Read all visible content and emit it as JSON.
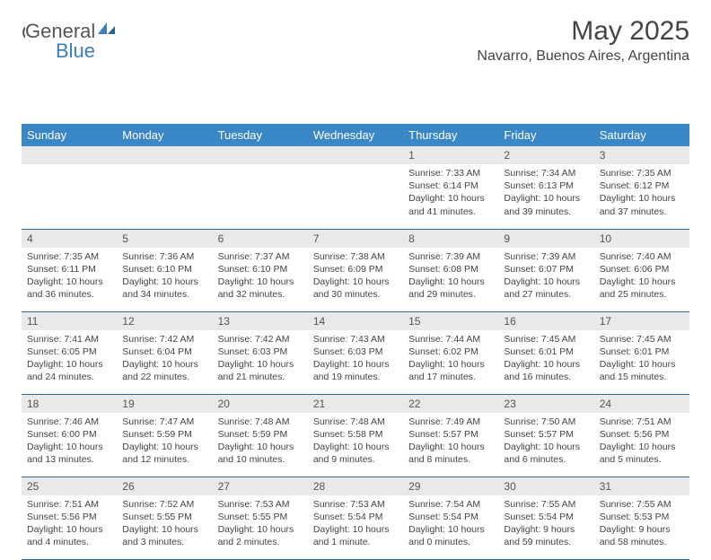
{
  "logo": {
    "general": "General",
    "blue": "Blue"
  },
  "title": "May 2025",
  "location": "Navarro, Buenos Aires, Argentina",
  "colors": {
    "header_bg": "#3a87c7",
    "header_fg": "#ffffff",
    "daynum_bg": "#e9e9e9",
    "row_border": "#356a9c",
    "logo_blue": "#3a7ebf"
  },
  "weekdays": [
    "Sunday",
    "Monday",
    "Tuesday",
    "Wednesday",
    "Thursday",
    "Friday",
    "Saturday"
  ],
  "grid": {
    "first_weekday_index": 4,
    "days_in_month": 31
  },
  "days": {
    "1": {
      "sunrise": "7:33 AM",
      "sunset": "6:14 PM",
      "daylight": "10 hours and 41 minutes."
    },
    "2": {
      "sunrise": "7:34 AM",
      "sunset": "6:13 PM",
      "daylight": "10 hours and 39 minutes."
    },
    "3": {
      "sunrise": "7:35 AM",
      "sunset": "6:12 PM",
      "daylight": "10 hours and 37 minutes."
    },
    "4": {
      "sunrise": "7:35 AM",
      "sunset": "6:11 PM",
      "daylight": "10 hours and 36 minutes."
    },
    "5": {
      "sunrise": "7:36 AM",
      "sunset": "6:10 PM",
      "daylight": "10 hours and 34 minutes."
    },
    "6": {
      "sunrise": "7:37 AM",
      "sunset": "6:10 PM",
      "daylight": "10 hours and 32 minutes."
    },
    "7": {
      "sunrise": "7:38 AM",
      "sunset": "6:09 PM",
      "daylight": "10 hours and 30 minutes."
    },
    "8": {
      "sunrise": "7:39 AM",
      "sunset": "6:08 PM",
      "daylight": "10 hours and 29 minutes."
    },
    "9": {
      "sunrise": "7:39 AM",
      "sunset": "6:07 PM",
      "daylight": "10 hours and 27 minutes."
    },
    "10": {
      "sunrise": "7:40 AM",
      "sunset": "6:06 PM",
      "daylight": "10 hours and 25 minutes."
    },
    "11": {
      "sunrise": "7:41 AM",
      "sunset": "6:05 PM",
      "daylight": "10 hours and 24 minutes."
    },
    "12": {
      "sunrise": "7:42 AM",
      "sunset": "6:04 PM",
      "daylight": "10 hours and 22 minutes."
    },
    "13": {
      "sunrise": "7:42 AM",
      "sunset": "6:03 PM",
      "daylight": "10 hours and 21 minutes."
    },
    "14": {
      "sunrise": "7:43 AM",
      "sunset": "6:03 PM",
      "daylight": "10 hours and 19 minutes."
    },
    "15": {
      "sunrise": "7:44 AM",
      "sunset": "6:02 PM",
      "daylight": "10 hours and 17 minutes."
    },
    "16": {
      "sunrise": "7:45 AM",
      "sunset": "6:01 PM",
      "daylight": "10 hours and 16 minutes."
    },
    "17": {
      "sunrise": "7:45 AM",
      "sunset": "6:01 PM",
      "daylight": "10 hours and 15 minutes."
    },
    "18": {
      "sunrise": "7:46 AM",
      "sunset": "6:00 PM",
      "daylight": "10 hours and 13 minutes."
    },
    "19": {
      "sunrise": "7:47 AM",
      "sunset": "5:59 PM",
      "daylight": "10 hours and 12 minutes."
    },
    "20": {
      "sunrise": "7:48 AM",
      "sunset": "5:59 PM",
      "daylight": "10 hours and 10 minutes."
    },
    "21": {
      "sunrise": "7:48 AM",
      "sunset": "5:58 PM",
      "daylight": "10 hours and 9 minutes."
    },
    "22": {
      "sunrise": "7:49 AM",
      "sunset": "5:57 PM",
      "daylight": "10 hours and 8 minutes."
    },
    "23": {
      "sunrise": "7:50 AM",
      "sunset": "5:57 PM",
      "daylight": "10 hours and 6 minutes."
    },
    "24": {
      "sunrise": "7:51 AM",
      "sunset": "5:56 PM",
      "daylight": "10 hours and 5 minutes."
    },
    "25": {
      "sunrise": "7:51 AM",
      "sunset": "5:56 PM",
      "daylight": "10 hours and 4 minutes."
    },
    "26": {
      "sunrise": "7:52 AM",
      "sunset": "5:55 PM",
      "daylight": "10 hours and 3 minutes."
    },
    "27": {
      "sunrise": "7:53 AM",
      "sunset": "5:55 PM",
      "daylight": "10 hours and 2 minutes."
    },
    "28": {
      "sunrise": "7:53 AM",
      "sunset": "5:54 PM",
      "daylight": "10 hours and 1 minute."
    },
    "29": {
      "sunrise": "7:54 AM",
      "sunset": "5:54 PM",
      "daylight": "10 hours and 0 minutes."
    },
    "30": {
      "sunrise": "7:55 AM",
      "sunset": "5:54 PM",
      "daylight": "9 hours and 59 minutes."
    },
    "31": {
      "sunrise": "7:55 AM",
      "sunset": "5:53 PM",
      "daylight": "9 hours and 58 minutes."
    }
  },
  "labels": {
    "sunrise": "Sunrise: ",
    "sunset": "Sunset: ",
    "daylight": "Daylight: "
  }
}
